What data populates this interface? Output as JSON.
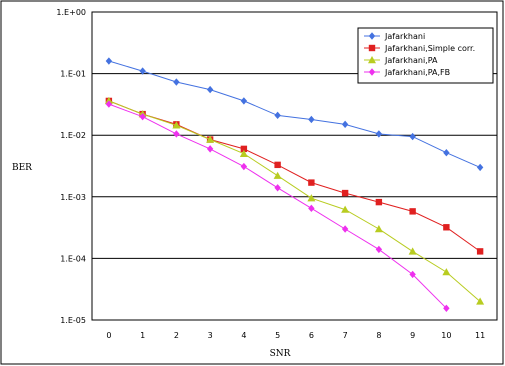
{
  "chart_data": {
    "type": "line",
    "xlabel": "SNR",
    "ylabel": "BER",
    "x": [
      0,
      1,
      2,
      3,
      4,
      5,
      6,
      7,
      8,
      9,
      10,
      11
    ],
    "x_tick_labels": [
      "0",
      "1",
      "2",
      "3",
      "4",
      "5",
      "6",
      "7",
      "8",
      "9",
      "10",
      "11"
    ],
    "y_scale": "log",
    "ylim": [
      1e-05,
      1
    ],
    "y_tick_values": [
      1,
      0.1,
      0.01,
      0.001,
      0.0001,
      1e-05
    ],
    "y_tick_labels": [
      "1.E+00",
      "1.E-01",
      "1.E-02",
      "1.E-03",
      "1.E-04",
      "1.E-05"
    ],
    "grid": "horizontal",
    "legend_position": "top-right",
    "series": [
      {
        "name": "Jafarkhani",
        "color": "#4472e0",
        "marker": "diamond",
        "x": [
          0,
          1,
          2,
          3,
          4,
          5,
          6,
          7,
          8,
          9,
          10,
          11
        ],
        "values": [
          0.16,
          0.11,
          0.073,
          0.055,
          0.036,
          0.021,
          0.018,
          0.015,
          0.0105,
          0.0095,
          0.0052,
          0.003
        ]
      },
      {
        "name": "Jafarkhani,Simple corr.",
        "color": "#e02020",
        "marker": "square",
        "x": [
          0,
          1,
          2,
          3,
          4,
          5,
          6,
          7,
          8,
          9,
          10,
          11
        ],
        "values": [
          0.036,
          0.022,
          0.015,
          0.0085,
          0.006,
          0.0033,
          0.0017,
          0.00115,
          0.00082,
          0.00058,
          0.00032,
          0.00013
        ]
      },
      {
        "name": "Jafarkhani,PA",
        "color": "#b8cc20",
        "marker": "triangle",
        "x": [
          0,
          1,
          2,
          3,
          4,
          5,
          6,
          7,
          8,
          9,
          10,
          11
        ],
        "values": [
          0.036,
          0.022,
          0.0145,
          0.0085,
          0.005,
          0.0022,
          0.00095,
          0.00062,
          0.0003,
          0.00013,
          6e-05,
          2e-05
        ]
      },
      {
        "name": "Jafarkhani,PA,FB",
        "color": "#ee30ee",
        "marker": "diamond",
        "x": [
          0,
          1,
          2,
          3,
          4,
          5,
          6,
          7,
          8,
          9,
          10
        ],
        "values": [
          0.032,
          0.02,
          0.0105,
          0.006,
          0.0031,
          0.0014,
          0.00065,
          0.0003,
          0.00014,
          5.5e-05,
          1.55e-05
        ]
      }
    ]
  }
}
